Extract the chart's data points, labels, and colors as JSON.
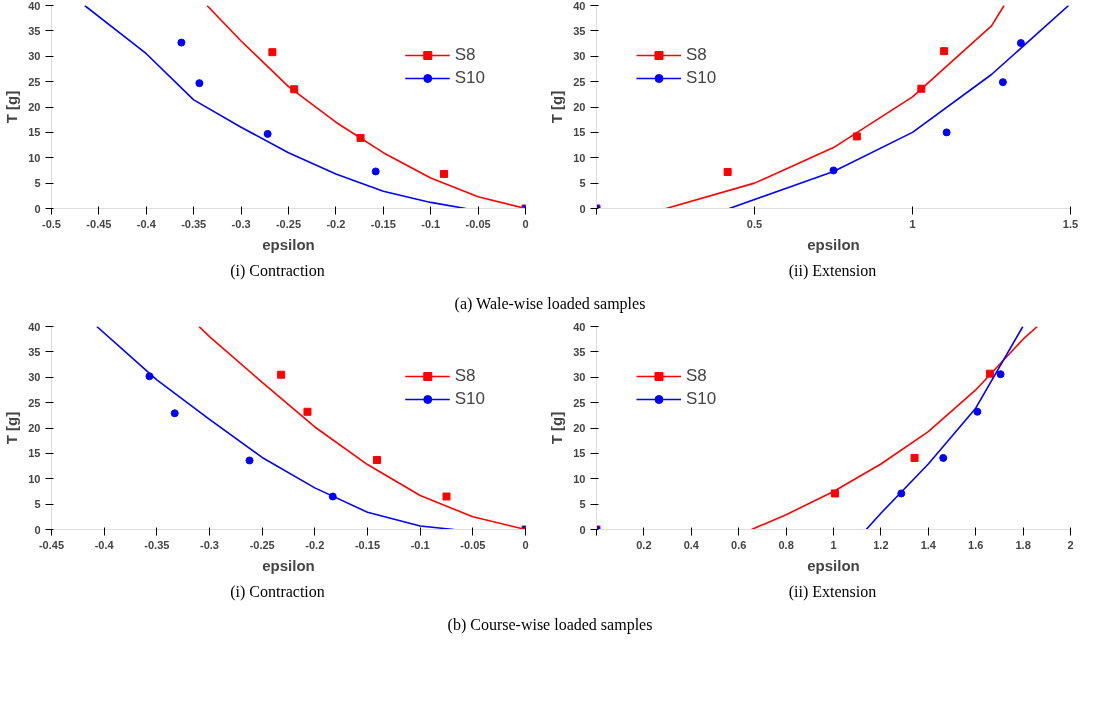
{
  "chart_data": [
    {
      "type": "scatter",
      "xlabel": "epsilon",
      "ylabel": "T [g]",
      "annotations": [
        "(i) Contraction",
        "(a) Wale-wise loaded samples"
      ],
      "xlim": [
        -0.5,
        0
      ],
      "xticks": [
        -0.5,
        -0.45,
        -0.4,
        -0.35,
        -0.3,
        -0.25,
        -0.2,
        -0.15,
        -0.1,
        -0.05,
        0
      ],
      "ylim": [
        0,
        40
      ],
      "yticks": [
        0,
        5,
        10,
        15,
        20,
        25,
        30,
        35,
        40
      ],
      "legend": "top right",
      "grid": false,
      "series": [
        {
          "name": "S8",
          "color": "#ff0000",
          "marker": "square",
          "x": [
            -0.267,
            -0.244,
            -0.174,
            -0.086,
            0
          ],
          "values": [
            30.8,
            23.5,
            13.9,
            6.8,
            0
          ]
        },
        {
          "name": "S10",
          "color": "#0000ff",
          "marker": "circle",
          "x": [
            -0.363,
            -0.344,
            -0.272,
            -0.158,
            0
          ],
          "values": [
            32.7,
            24.7,
            14.7,
            7.3,
            0
          ]
        },
        {
          "type": "line",
          "color": "#ff0000",
          "x": [
            -0.336,
            -0.3,
            -0.25,
            -0.2,
            -0.15,
            -0.1,
            -0.05,
            0
          ],
          "values": [
            40,
            33,
            24,
            17,
            11,
            6,
            2.3,
            0
          ]
        },
        {
          "type": "line",
          "color": "#0000ff",
          "x": [
            -0.465,
            -0.4,
            -0.35,
            -0.3,
            -0.25,
            -0.2,
            -0.15,
            -0.1,
            -0.063
          ],
          "values": [
            40,
            30.5,
            21.4,
            16,
            11,
            6.8,
            3.4,
            1.2,
            0
          ]
        }
      ]
    },
    {
      "type": "scatter",
      "xlabel": "epsilon",
      "ylabel": "T [g]",
      "annotations": [
        "(ii) Extension"
      ],
      "xlim": [
        0,
        1.5
      ],
      "xticks": [
        {
          "value": 0,
          "label": null
        },
        0.5,
        1,
        1.5
      ],
      "ylim": [
        0,
        40
      ],
      "yticks": [
        0,
        5,
        10,
        15,
        20,
        25,
        30,
        35,
        40
      ],
      "legend": "top left",
      "grid": false,
      "series": [
        {
          "name": "S8",
          "color": "#ff0000",
          "marker": "square",
          "x": [
            0,
            0.415,
            0.824,
            1.028,
            1.1
          ],
          "values": [
            0,
            7.2,
            14.2,
            23.6,
            31.0
          ]
        },
        {
          "name": "S10",
          "color": "#0000ff",
          "marker": "circle",
          "x": [
            0,
            0.75,
            1.108,
            1.286,
            1.343
          ],
          "values": [
            0,
            7.5,
            15.0,
            24.9,
            32.6
          ]
        },
        {
          "type": "line",
          "color": "#ff0000",
          "x": [
            0.22,
            0.5,
            0.75,
            1.0,
            1.25,
            1.29
          ],
          "values": [
            0,
            5,
            12,
            22,
            36,
            40
          ]
        },
        {
          "type": "line",
          "color": "#0000ff",
          "x": [
            0.42,
            0.75,
            1.0,
            1.25,
            1.494
          ],
          "values": [
            0,
            7.3,
            15,
            26.4,
            40
          ]
        }
      ]
    },
    {
      "type": "scatter",
      "xlabel": "epsilon",
      "ylabel": "T [g]",
      "annotations": [
        "(i) Contraction",
        "(b) Course-wise loaded samples"
      ],
      "xlim": [
        -0.45,
        0
      ],
      "xticks": [
        -0.45,
        -0.4,
        -0.35,
        -0.3,
        -0.25,
        -0.2,
        -0.15,
        -0.1,
        -0.05,
        0
      ],
      "ylim": [
        0,
        40
      ],
      "yticks": [
        0,
        5,
        10,
        15,
        20,
        25,
        30,
        35,
        40
      ],
      "legend": "top right",
      "grid": false,
      "series": [
        {
          "name": "S8",
          "color": "#ff0000",
          "marker": "square",
          "x": [
            -0.232,
            -0.207,
            -0.141,
            -0.075,
            0
          ],
          "values": [
            30.5,
            23.2,
            13.7,
            6.5,
            0
          ]
        },
        {
          "name": "S10",
          "color": "#0000ff",
          "marker": "circle",
          "x": [
            -0.357,
            -0.333,
            -0.262,
            -0.183,
            0
          ],
          "values": [
            30.2,
            22.9,
            13.6,
            6.5,
            0
          ]
        },
        {
          "type": "line",
          "color": "#ff0000",
          "x": [
            -0.31,
            -0.3,
            -0.25,
            -0.2,
            -0.15,
            -0.1,
            -0.05,
            0
          ],
          "values": [
            40,
            38,
            29,
            20.2,
            12.8,
            6.7,
            2.5,
            0
          ]
        },
        {
          "type": "line",
          "color": "#0000ff",
          "x": [
            -0.407,
            -0.35,
            -0.3,
            -0.25,
            -0.2,
            -0.15,
            -0.1,
            -0.068
          ],
          "values": [
            40,
            29.5,
            21.7,
            14.2,
            8.2,
            3.4,
            0.7,
            0
          ]
        }
      ]
    },
    {
      "type": "scatter",
      "xlabel": "epsilon",
      "ylabel": "T [g]",
      "annotations": [
        "(ii) Extension"
      ],
      "xlim": [
        0,
        2
      ],
      "xticks": [
        {
          "value": 0,
          "label": null
        },
        0.2,
        0.4,
        0.6,
        0.8,
        1,
        1.2,
        1.4,
        1.6,
        1.8,
        2
      ],
      "ylim": [
        0,
        40
      ],
      "yticks": [
        0,
        5,
        10,
        15,
        20,
        25,
        30,
        35,
        40
      ],
      "legend": "top left",
      "grid": false,
      "series": [
        {
          "name": "S8",
          "color": "#ff0000",
          "marker": "square",
          "x": [
            0,
            1.006,
            1.342,
            1.66
          ],
          "values": [
            0,
            7.1,
            14.1,
            30.7
          ]
        },
        {
          "name": "S10",
          "color": "#0000ff",
          "marker": "circle",
          "x": [
            0,
            1.286,
            1.463,
            1.607,
            1.705
          ],
          "values": [
            0,
            7.1,
            14.1,
            23.2,
            30.6
          ]
        },
        {
          "type": "line",
          "color": "#ff0000",
          "x": [
            0.654,
            0.8,
            1.0,
            1.2,
            1.4,
            1.6,
            1.8,
            1.86
          ],
          "values": [
            0,
            2.9,
            7.5,
            12.9,
            19.3,
            27.5,
            37.5,
            40
          ]
        },
        {
          "type": "line",
          "color": "#0000ff",
          "x": [
            1.138,
            1.2,
            1.4,
            1.6,
            1.799
          ],
          "values": [
            0,
            3.2,
            12.9,
            23.9,
            40
          ]
        }
      ]
    }
  ]
}
